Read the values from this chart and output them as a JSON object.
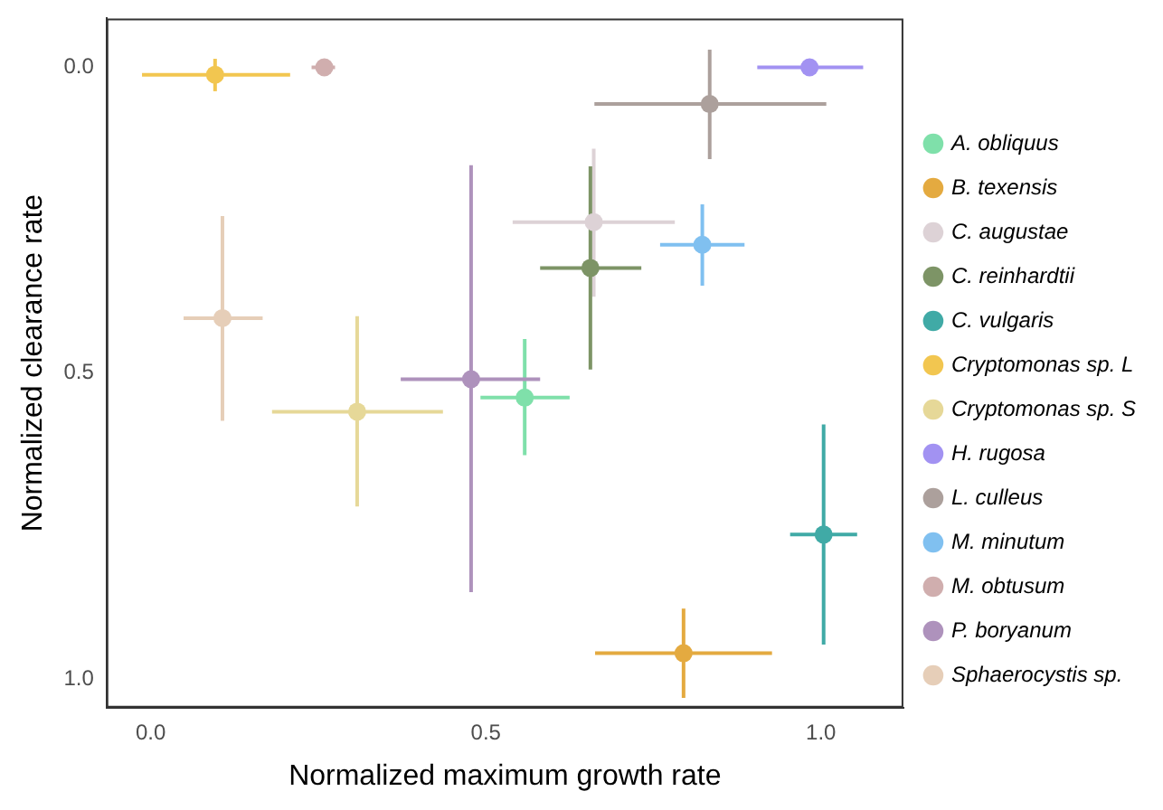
{
  "chart_data": {
    "type": "scatter",
    "xlabel": "Normalized maximum growth rate",
    "ylabel": "Normalized clearance rate",
    "xlim": [
      -0.066,
      1.123
    ],
    "ylim": [
      1.047,
      -0.08
    ],
    "xticks": [
      {
        "value": 0,
        "label": "0.0"
      },
      {
        "value": 0.5,
        "label": "0.5"
      },
      {
        "value": 1,
        "label": "1.0"
      }
    ],
    "yticks": [
      {
        "value": 0,
        "label": "0.0"
      },
      {
        "value": 0.5,
        "label": "0.5"
      },
      {
        "value": 1,
        "label": "1.0"
      }
    ],
    "grid": false,
    "legend": "right",
    "marker": "circle",
    "series": [
      {
        "name": "A. obliquus",
        "color": "#7fe0aa",
        "x": [
          0.558
        ],
        "values": [
          0.54
        ],
        "xerrors": [
          [
            0.492,
            0.625
          ]
        ],
        "errors": [
          [
            0.444,
            0.634
          ]
        ]
      },
      {
        "name": "B. texensis",
        "color": "#e4aa40",
        "x": [
          0.795
        ],
        "values": [
          0.958
        ],
        "xerrors": [
          [
            0.663,
            0.927
          ]
        ],
        "errors": [
          [
            0.885,
            1.031
          ]
        ]
      },
      {
        "name": "C. augustae",
        "color": "#ddd2d6",
        "x": [
          0.661
        ],
        "values": [
          0.253
        ],
        "xerrors": [
          [
            0.54,
            0.782
          ]
        ],
        "errors": [
          [
            0.133,
            0.375
          ]
        ]
      },
      {
        "name": "C. reinhardtii",
        "color": "#7d9466",
        "x": [
          0.656
        ],
        "values": [
          0.328
        ],
        "xerrors": [
          [
            0.581,
            0.732
          ]
        ],
        "errors": [
          [
            0.162,
            0.494
          ]
        ]
      },
      {
        "name": "C. vulgaris",
        "color": "#40aaa6",
        "x": [
          1.004
        ],
        "values": [
          0.764
        ],
        "xerrors": [
          [
            0.954,
            1.054
          ]
        ],
        "errors": [
          [
            0.584,
            0.944
          ]
        ]
      },
      {
        "name": "Cryptomonas sp. L",
        "color": "#f2c650",
        "x": [
          0.096
        ],
        "values": [
          0.012
        ],
        "xerrors": [
          [
            -0.013,
            0.208
          ]
        ],
        "errors": [
          [
            -0.014,
            0.039
          ]
        ]
      },
      {
        "name": "Cryptomonas sp. S",
        "color": "#e6d898",
        "x": [
          0.308
        ],
        "values": [
          0.563
        ],
        "xerrors": [
          [
            0.181,
            0.436
          ]
        ],
        "errors": [
          [
            0.407,
            0.718
          ]
        ]
      },
      {
        "name": "H. rugosa",
        "color": "#a292f2",
        "x": [
          0.983
        ],
        "values": [
          0.0
        ],
        "xerrors": [
          [
            0.905,
            1.063
          ]
        ]
      },
      {
        "name": "L. culleus",
        "color": "#aca09c",
        "x": [
          0.834
        ],
        "values": [
          0.06
        ],
        "xerrors": [
          [
            0.662,
            1.008
          ]
        ],
        "errors": [
          [
            -0.029,
            0.15
          ]
        ]
      },
      {
        "name": "M. minutum",
        "color": "#80c0f0",
        "x": [
          0.823
        ],
        "values": [
          0.29
        ],
        "xerrors": [
          [
            0.76,
            0.886
          ]
        ],
        "errors": [
          [
            0.224,
            0.357
          ]
        ]
      },
      {
        "name": "M. obtusum",
        "color": "#d0aeae",
        "x": [
          0.259
        ],
        "values": [
          0.0
        ],
        "xerrors": [
          [
            0.24,
            0.275
          ]
        ]
      },
      {
        "name": "P. boryanum",
        "color": "#ae92bc",
        "x": [
          0.478
        ],
        "values": [
          0.51
        ],
        "xerrors": [
          [
            0.373,
            0.581
          ]
        ],
        "errors": [
          [
            0.16,
            0.858
          ]
        ]
      },
      {
        "name": "Sphaerocystis sp.",
        "color": "#e6ceb8",
        "x": [
          0.107
        ],
        "values": [
          0.41
        ],
        "xerrors": [
          [
            0.049,
            0.167
          ]
        ],
        "errors": [
          [
            0.243,
            0.578
          ]
        ]
      }
    ]
  }
}
